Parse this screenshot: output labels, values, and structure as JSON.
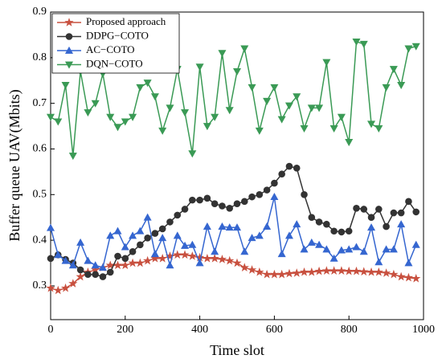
{
  "chart_data": {
    "type": "line",
    "xlabel": "Time slot",
    "ylabel": "Buffer queue UAV(Mbits)",
    "x": [
      0,
      20,
      40,
      60,
      80,
      100,
      120,
      140,
      160,
      180,
      200,
      220,
      240,
      260,
      280,
      300,
      320,
      340,
      360,
      380,
      400,
      420,
      440,
      460,
      480,
      500,
      520,
      540,
      560,
      580,
      600,
      620,
      640,
      660,
      680,
      700,
      720,
      740,
      760,
      780,
      800,
      820,
      840,
      860,
      880,
      900,
      920,
      940,
      960,
      980
    ],
    "xlim": [
      0,
      1000
    ],
    "xticks": [
      0,
      200,
      400,
      600,
      800,
      1000
    ],
    "ylim": [
      0.226,
      0.9
    ],
    "yticks": [
      0.3,
      0.4,
      0.5,
      0.6,
      0.7,
      0.8,
      0.9
    ],
    "legend": "upper left",
    "series": [
      {
        "name": "Proposed approach",
        "color": "#c8503f",
        "marker": "star",
        "values": [
          0.295,
          0.29,
          0.295,
          0.305,
          0.32,
          0.33,
          0.335,
          0.34,
          0.345,
          0.345,
          0.345,
          0.35,
          0.35,
          0.355,
          0.36,
          0.36,
          0.365,
          0.368,
          0.368,
          0.365,
          0.362,
          0.36,
          0.36,
          0.358,
          0.355,
          0.35,
          0.34,
          0.335,
          0.33,
          0.325,
          0.325,
          0.325,
          0.327,
          0.328,
          0.33,
          0.33,
          0.332,
          0.333,
          0.333,
          0.333,
          0.332,
          0.332,
          0.331,
          0.33,
          0.33,
          0.328,
          0.325,
          0.32,
          0.318,
          0.316
        ]
      },
      {
        "name": "DDPG−COTO",
        "color": "#333333",
        "marker": "circle",
        "values": [
          0.36,
          0.368,
          0.358,
          0.35,
          0.335,
          0.325,
          0.325,
          0.32,
          0.33,
          0.365,
          0.36,
          0.375,
          0.39,
          0.405,
          0.415,
          0.425,
          0.44,
          0.455,
          0.468,
          0.488,
          0.488,
          0.492,
          0.48,
          0.475,
          0.47,
          0.48,
          0.485,
          0.495,
          0.5,
          0.51,
          0.525,
          0.545,
          0.562,
          0.558,
          0.5,
          0.45,
          0.44,
          0.435,
          0.42,
          0.418,
          0.42,
          0.47,
          0.468,
          0.45,
          0.468,
          0.43,
          0.46,
          0.46,
          0.485,
          0.462
        ]
      },
      {
        "name": "AC−COTO",
        "color": "#3566d0",
        "marker": "triangle-up",
        "values": [
          0.427,
          0.368,
          0.355,
          0.345,
          0.395,
          0.355,
          0.345,
          0.34,
          0.41,
          0.42,
          0.385,
          0.41,
          0.42,
          0.45,
          0.37,
          0.405,
          0.345,
          0.41,
          0.388,
          0.39,
          0.35,
          0.43,
          0.375,
          0.43,
          0.428,
          0.428,
          0.375,
          0.405,
          0.41,
          0.43,
          0.495,
          0.37,
          0.41,
          0.435,
          0.38,
          0.395,
          0.39,
          0.38,
          0.36,
          0.378,
          0.38,
          0.385,
          0.375,
          0.428,
          0.352,
          0.38,
          0.38,
          0.435,
          0.35,
          0.39
        ]
      },
      {
        "name": "DQN−COTO",
        "color": "#3a9a55",
        "marker": "triangle-down",
        "values": [
          0.67,
          0.66,
          0.74,
          0.585,
          0.77,
          0.68,
          0.7,
          0.765,
          0.67,
          0.648,
          0.66,
          0.67,
          0.735,
          0.745,
          0.715,
          0.64,
          0.69,
          0.775,
          0.68,
          0.59,
          0.78,
          0.65,
          0.67,
          0.81,
          0.685,
          0.77,
          0.82,
          0.735,
          0.64,
          0.705,
          0.735,
          0.665,
          0.695,
          0.715,
          0.645,
          0.69,
          0.69,
          0.79,
          0.645,
          0.67,
          0.615,
          0.835,
          0.83,
          0.655,
          0.645,
          0.735,
          0.775,
          0.74,
          0.82,
          0.825
        ]
      }
    ]
  }
}
